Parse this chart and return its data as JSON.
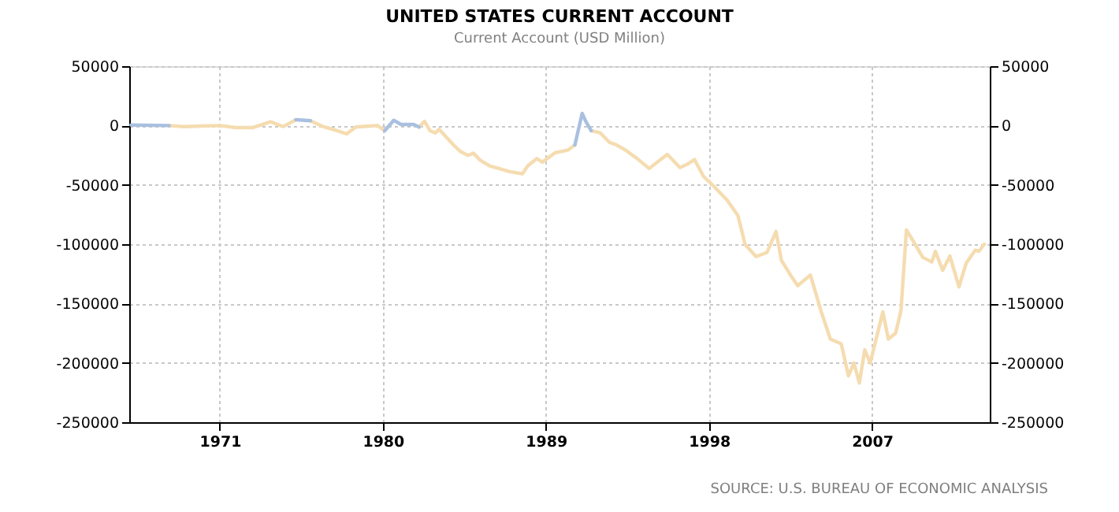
{
  "chart_data": {
    "type": "line",
    "title": "UNITED STATES CURRENT ACCOUNT",
    "subtitle": "Current Account (USD Million)",
    "annotations": [
      "SOURCE: U.S. BUREAU OF ECONOMIC ANALYSIS"
    ],
    "xlim": [
      1966,
      2013.5
    ],
    "xticks": [
      1971,
      1980,
      1989,
      1998,
      2007
    ],
    "ylim": [
      -250000,
      50000
    ],
    "yticks": [
      -250000,
      -200000,
      -150000,
      -100000,
      -50000,
      0,
      50000
    ],
    "y2lim": [
      -250000,
      50000
    ],
    "y2ticks": [
      -250000,
      -200000,
      -150000,
      -100000,
      -50000,
      0,
      50000
    ],
    "grid": true,
    "marker": "none",
    "line_style": "solid",
    "series": [
      {
        "color": "#f5dcb0",
        "x": [
          1968.2,
          1969.0,
          1971.0,
          1971.9,
          1972.8,
          1973.8,
          1974.5,
          1975.2,
          1975.6,
          1976.0,
          1976.7,
          1977.4,
          1978.0,
          1978.5,
          1979.3,
          1979.7,
          1980.1,
          1980.8,
          1982.0,
          1982.3,
          1982.6,
          1982.9,
          1983.1,
          1983.5,
          1983.9,
          1984.3,
          1984.7,
          1985.0,
          1985.4,
          1985.9,
          1986.4,
          1987.0,
          1987.7,
          1988.0,
          1988.5,
          1988.8,
          1989.5,
          1990.2,
          1990.6,
          1991.1,
          1991.5,
          1992.0,
          1992.5,
          1992.9,
          1993.4,
          1994.0,
          1994.7,
          1995.7,
          1996.4,
          1996.8,
          1997.2,
          1997.7,
          1998.3,
          1999.0,
          1999.6,
          2000.0,
          2000.6,
          2001.2,
          2001.7,
          2002.0,
          2002.5,
          2002.9,
          2003.6,
          2004.2,
          2004.7,
          2005.3,
          2005.7,
          2006.0,
          2006.3,
          2006.6,
          2006.9,
          2007.6,
          2007.9,
          2008.3,
          2008.6,
          2008.9,
          2009.3,
          2009.8,
          2010.3,
          2010.5,
          2010.9,
          2011.3,
          2011.8,
          2012.2,
          2012.7,
          2012.9,
          2013.2
        ],
        "values": [
          0,
          -900,
          0,
          -1800,
          -1800,
          3100,
          -900,
          4900,
          null,
          4000,
          -900,
          -4000,
          -7100,
          -1300,
          -400,
          0,
          -4400,
          null,
          -1300,
          3500,
          -4400,
          -6200,
          -3100,
          -9700,
          -16400,
          -22100,
          -25200,
          -23400,
          -29600,
          -34000,
          -36200,
          -38900,
          -40700,
          -34000,
          -27800,
          -30900,
          -23000,
          -20800,
          -16400,
          null,
          -4400,
          -6200,
          -14100,
          -16400,
          -20800,
          -27400,
          -36200,
          -24300,
          -35400,
          -32700,
          -28700,
          -42900,
          -51700,
          -62800,
          -76000,
          -100300,
          -110500,
          -107000,
          -89300,
          -113600,
          -126000,
          -135000,
          -126000,
          -157000,
          -180000,
          -184000,
          -211000,
          -200000,
          -217000,
          -189000,
          -200000,
          -157000,
          -180000,
          -175000,
          -156000,
          -88000,
          -98000,
          -111000,
          -115000,
          -106000,
          -122000,
          -110000,
          -136000,
          -116000,
          -105000,
          -106000,
          -100000
        ]
      },
      {
        "color": "#a9c0e0",
        "x": [
          1966.1,
          1968.2,
          1970.0,
          1975.2,
          1976.0,
          1978.0,
          1980.1,
          1980.6,
          1981.0,
          1981.7,
          1982.0,
          1986.0,
          1990.6,
          1991.0,
          1991.2,
          1991.5
        ],
        "values": [
          400,
          0,
          null,
          4900,
          4000,
          null,
          -4400,
          4400,
          900,
          900,
          -1300,
          null,
          -16400,
          10200,
          3500,
          -4400
        ]
      }
    ]
  }
}
